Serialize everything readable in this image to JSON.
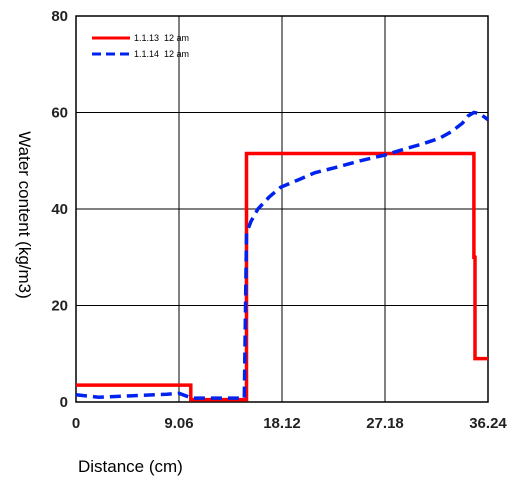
{
  "chart_data": {
    "type": "line",
    "xlabel": "Distance (cm)",
    "ylabel": "Water content (kg/m3)",
    "xlim": [
      0,
      36.24
    ],
    "ylim": [
      0,
      80
    ],
    "x_ticks": [
      0,
      9.06,
      18.12,
      27.18,
      36.24
    ],
    "x_tick_labels": [
      "0",
      "9.06",
      "18.12",
      "27.18",
      "36.24"
    ],
    "y_ticks": [
      0,
      20,
      40,
      60,
      80
    ],
    "y_tick_labels": [
      "0",
      "20",
      "40",
      "60",
      "80"
    ],
    "grid": true,
    "legend_position": "top-left",
    "series": [
      {
        "name": "1.1.13  12 am",
        "color": "#ff0000",
        "style": "solid",
        "x": [
          0,
          10.1,
          10.1,
          15.0,
          15.0,
          35.0,
          35.0,
          35.1,
          35.1,
          36.24
        ],
        "y": [
          3.5,
          3.5,
          0.5,
          0.5,
          51.5,
          51.5,
          30,
          30,
          9,
          9
        ]
      },
      {
        "name": "1.1.14  12 am",
        "color": "#0022ee",
        "style": "dashed",
        "x": [
          0,
          2,
          5,
          8,
          9.06,
          10.2,
          14.8,
          15.0,
          15.4,
          16.0,
          17.0,
          18.0,
          19.5,
          21.0,
          23.0,
          25.0,
          27.18,
          29.0,
          30.5,
          32.0,
          33.0,
          34.0,
          34.5,
          35.0,
          35.5,
          36.24
        ],
        "y": [
          1.5,
          1.0,
          1.3,
          1.6,
          1.8,
          0.8,
          0.8,
          35,
          37.5,
          40,
          42.5,
          44.5,
          46,
          47.5,
          48.7,
          50,
          51.2,
          52.5,
          53.5,
          54.7,
          56,
          57.8,
          59.3,
          60,
          59.8,
          58.5
        ]
      }
    ]
  }
}
